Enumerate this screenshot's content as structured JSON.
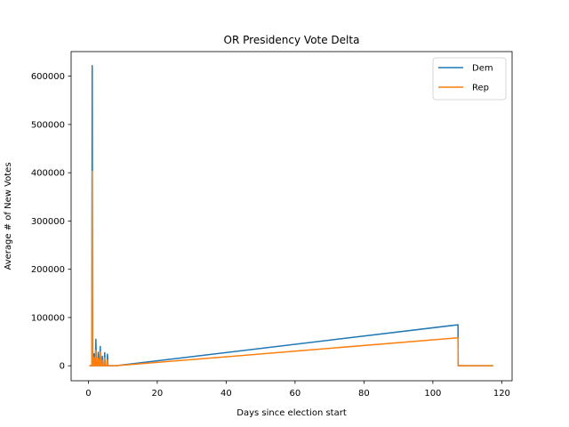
{
  "chart_data": {
    "type": "line",
    "title": "OR Presidency Vote Delta",
    "xlabel": "Days since election start",
    "ylabel": "Average # of New Votes",
    "xlim": [
      -5,
      123
    ],
    "ylim": [
      -31000,
      651000
    ],
    "xticks": [
      0,
      20,
      40,
      60,
      80,
      100,
      120
    ],
    "yticks": [
      0,
      100000,
      200000,
      300000,
      400000,
      500000,
      600000
    ],
    "grid": false,
    "legend_position": "top-right",
    "series": [
      {
        "name": "Dem",
        "color": "#1f77b4",
        "points": [
          [
            0.3,
            0
          ],
          [
            0.9,
            0
          ],
          [
            1.0,
            0
          ],
          [
            1.12,
            622000
          ],
          [
            1.24,
            0
          ],
          [
            1.5,
            0
          ],
          [
            1.65,
            25000
          ],
          [
            1.8,
            0
          ],
          [
            2.0,
            0
          ],
          [
            2.18,
            55000
          ],
          [
            2.36,
            0
          ],
          [
            2.7,
            0
          ],
          [
            2.88,
            28000
          ],
          [
            3.06,
            0
          ],
          [
            3.3,
            0
          ],
          [
            3.45,
            40000
          ],
          [
            3.6,
            0
          ],
          [
            3.9,
            0
          ],
          [
            4.05,
            20000
          ],
          [
            4.2,
            0
          ],
          [
            4.6,
            0
          ],
          [
            4.75,
            27000
          ],
          [
            4.9,
            0
          ],
          [
            5.4,
            0
          ],
          [
            5.55,
            24000
          ],
          [
            5.7,
            0
          ],
          [
            6.5,
            0
          ],
          [
            8.0,
            0
          ],
          [
            107.3,
            85000
          ],
          [
            107.35,
            0
          ],
          [
            117.5,
            0
          ]
        ]
      },
      {
        "name": "Rep",
        "color": "#ff7f0e",
        "points": [
          [
            0.3,
            0
          ],
          [
            0.9,
            0
          ],
          [
            1.0,
            0
          ],
          [
            1.12,
            403000
          ],
          [
            1.24,
            0
          ],
          [
            1.5,
            0
          ],
          [
            1.65,
            18000
          ],
          [
            1.8,
            0
          ],
          [
            2.0,
            0
          ],
          [
            2.18,
            32000
          ],
          [
            2.36,
            0
          ],
          [
            2.7,
            0
          ],
          [
            2.88,
            15000
          ],
          [
            3.06,
            0
          ],
          [
            3.3,
            0
          ],
          [
            3.45,
            28000
          ],
          [
            3.6,
            0
          ],
          [
            3.9,
            0
          ],
          [
            4.05,
            12000
          ],
          [
            4.2,
            0
          ],
          [
            4.6,
            0
          ],
          [
            4.75,
            16000
          ],
          [
            4.9,
            0
          ],
          [
            5.4,
            0
          ],
          [
            5.55,
            12000
          ],
          [
            5.7,
            0
          ],
          [
            6.5,
            0
          ],
          [
            8.0,
            0
          ],
          [
            107.3,
            58000
          ],
          [
            107.35,
            0
          ],
          [
            117.5,
            0
          ]
        ]
      }
    ]
  }
}
